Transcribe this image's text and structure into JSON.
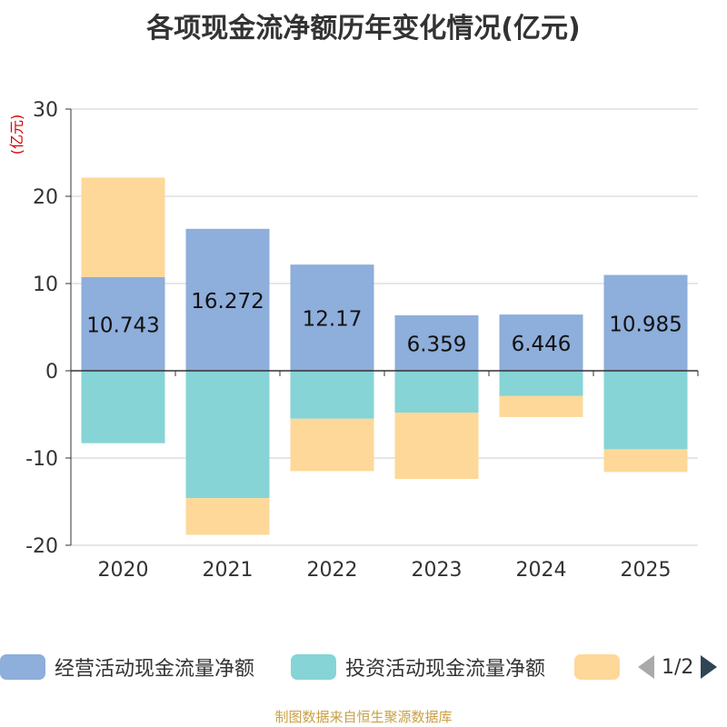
{
  "chart_data": {
    "type": "bar",
    "stacked": true,
    "title": "各项现金流净额历年变化情况(亿元)",
    "ylabel": "(亿元)",
    "xlabel": "",
    "categories": [
      "2020",
      "2021",
      "2022",
      "2023",
      "2024",
      "2025"
    ],
    "ylim": [
      -20,
      30
    ],
    "yticks": [
      -20,
      -10,
      0,
      10,
      20,
      30
    ],
    "grid": true,
    "series": [
      {
        "name": "经营活动现金流量净额",
        "color": "#8eaedb",
        "values": [
          10.743,
          16.272,
          12.17,
          6.359,
          6.446,
          10.985
        ],
        "labels": [
          "10.743",
          "16.272",
          "12.17",
          "6.359",
          "6.446",
          "10.985"
        ]
      },
      {
        "name": "投资活动现金流量净额",
        "color": "#86d4d6",
        "values": [
          -8.3,
          -14.6,
          -5.5,
          -4.8,
          -2.9,
          -9.0
        ]
      },
      {
        "name": "",
        "color": "#fed898",
        "values": [
          11.4,
          -4.2,
          -6.0,
          -7.6,
          -2.4,
          -2.6
        ]
      }
    ]
  },
  "legend": {
    "items": [
      "经营活动现金流量净额",
      "投资活动现金流量净额",
      ""
    ],
    "page": "1/2"
  },
  "source": "制图数据来自恒生聚源数据库"
}
